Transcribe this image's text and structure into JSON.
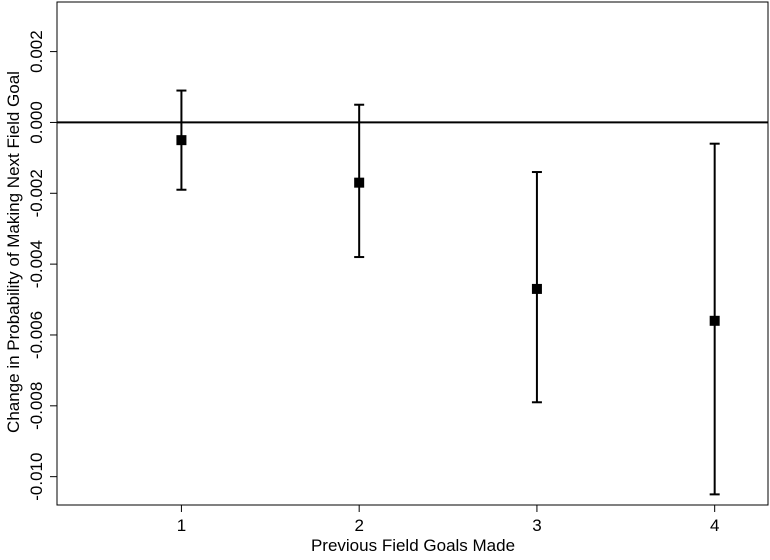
{
  "chart_data": {
    "type": "scatter",
    "title": "",
    "xlabel": "Previous Field Goals Made",
    "ylabel": "Change in Probability of Making Next Field Goal",
    "x_ticks": [
      1,
      2,
      3,
      4
    ],
    "x_tick_labels": [
      "1",
      "2",
      "3",
      "4"
    ],
    "y_ticks": [
      0.002,
      0.0,
      -0.002,
      -0.004,
      -0.006,
      -0.008,
      -0.01
    ],
    "y_tick_labels": [
      "0.002",
      "0.000",
      "-0.002",
      "-0.004",
      "-0.006",
      "-0.008",
      "-0.010"
    ],
    "xlim": [
      0.3,
      4.3
    ],
    "ylim": [
      -0.0108,
      0.0034
    ],
    "reference_line_y": 0.0,
    "grid": false,
    "error_bars": true,
    "points": [
      {
        "x": 1,
        "y": -0.0005,
        "ci_low": -0.0019,
        "ci_high": 0.0009
      },
      {
        "x": 2,
        "y": -0.0017,
        "ci_low": -0.0038,
        "ci_high": 0.0005
      },
      {
        "x": 3,
        "y": -0.0047,
        "ci_low": -0.0079,
        "ci_high": -0.0014
      },
      {
        "x": 4,
        "y": -0.0056,
        "ci_low": -0.0105,
        "ci_high": -0.0006
      }
    ],
    "marker": "square",
    "color": "#000000"
  }
}
